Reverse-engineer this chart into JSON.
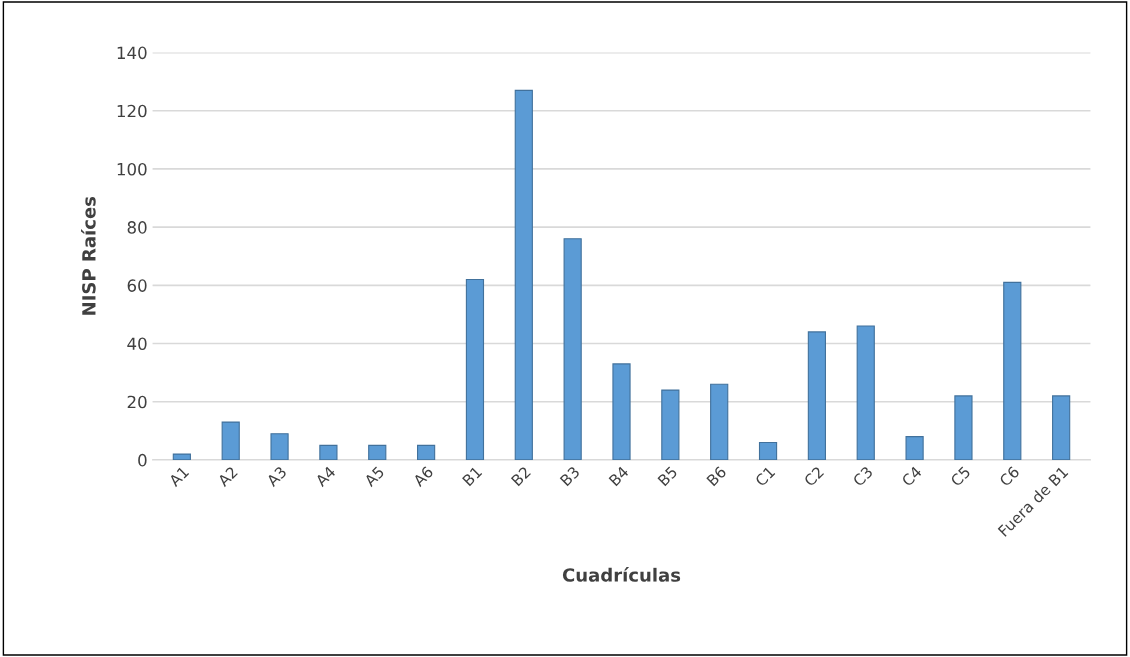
{
  "chart_data": {
    "type": "bar",
    "xlabel": "Cuadrículas",
    "ylabel": "NISP Raíces",
    "categories": [
      "A1",
      "A2",
      "A3",
      "A4",
      "A5",
      "A6",
      "B1",
      "B2",
      "B3",
      "B4",
      "B5",
      "B6",
      "C1",
      "C2",
      "C3",
      "C4",
      "C5",
      "C6",
      "Fuera de B1"
    ],
    "values": [
      2,
      13,
      9,
      5,
      5,
      5,
      62,
      127,
      76,
      33,
      24,
      26,
      6,
      44,
      46,
      8,
      22,
      61,
      22
    ],
    "color": "#5b9bd5",
    "ylim": [
      0,
      140
    ],
    "yticks": [
      0,
      20,
      40,
      60,
      80,
      100,
      120,
      140
    ],
    "grid": "y",
    "legend": false
  }
}
